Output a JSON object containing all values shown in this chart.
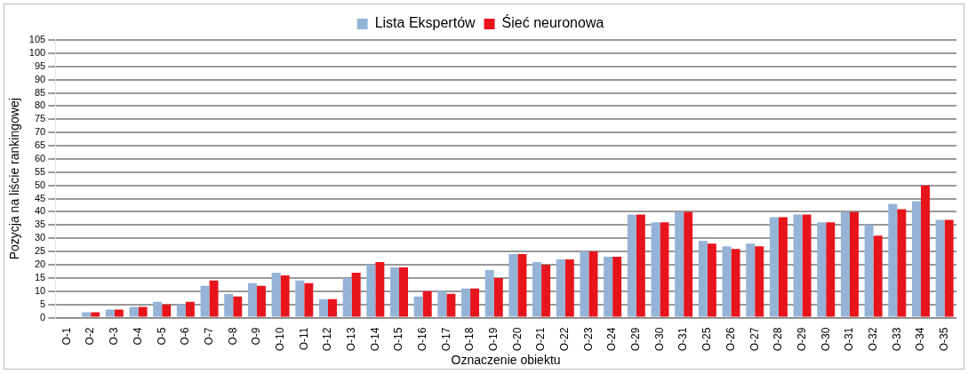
{
  "chart_data": {
    "type": "bar",
    "xlabel": "Oznaczenie obiektu",
    "ylabel": "Pozycja na liście rankingowej",
    "categories": [
      "O-1",
      "O-2",
      "O-3",
      "O-4",
      "O-5",
      "O-6",
      "O-7",
      "O-8",
      "O-9",
      "O-10",
      "O-11",
      "O-12",
      "O-13",
      "O-14",
      "O-15",
      "O-16",
      "O-17",
      "O-18",
      "O-19",
      "O-20",
      "O-21",
      "O-22",
      "O-23",
      "O-24",
      "O-29",
      "O-30",
      "O-31",
      "O-25",
      "O-26",
      "O-27",
      "O-28",
      "O-29",
      "O-30",
      "O-31",
      "O-32",
      "O-33",
      "O-34",
      "O-35"
    ],
    "series": [
      {
        "name": "Lista Ekspertów",
        "color": "#95b3d7",
        "values": [
          0,
          2,
          3,
          4,
          6,
          5,
          12,
          9,
          13,
          17,
          14,
          7,
          15,
          20,
          19,
          8,
          10,
          11,
          18,
          24,
          21,
          22,
          25,
          23,
          39,
          36,
          40,
          29,
          27,
          28,
          38,
          39,
          36,
          40,
          35,
          43,
          44,
          37
        ]
      },
      {
        "name": "Śieć neuronowa",
        "color": "#e8141c",
        "values": [
          0,
          2,
          3,
          4,
          5,
          6,
          14,
          8,
          12,
          16,
          13,
          7,
          17,
          21,
          19,
          10,
          9,
          11,
          15,
          24,
          20,
          22,
          25,
          23,
          39,
          36,
          40,
          28,
          26,
          27,
          38,
          39,
          36,
          40,
          31,
          41,
          50,
          37
        ]
      }
    ],
    "ylim": [
      0,
      105
    ],
    "yticks": [
      0,
      5,
      10,
      15,
      20,
      25,
      30,
      35,
      40,
      45,
      50,
      55,
      60,
      65,
      70,
      75,
      80,
      85,
      90,
      95,
      100,
      105
    ],
    "grid": "y",
    "legend": "top"
  }
}
